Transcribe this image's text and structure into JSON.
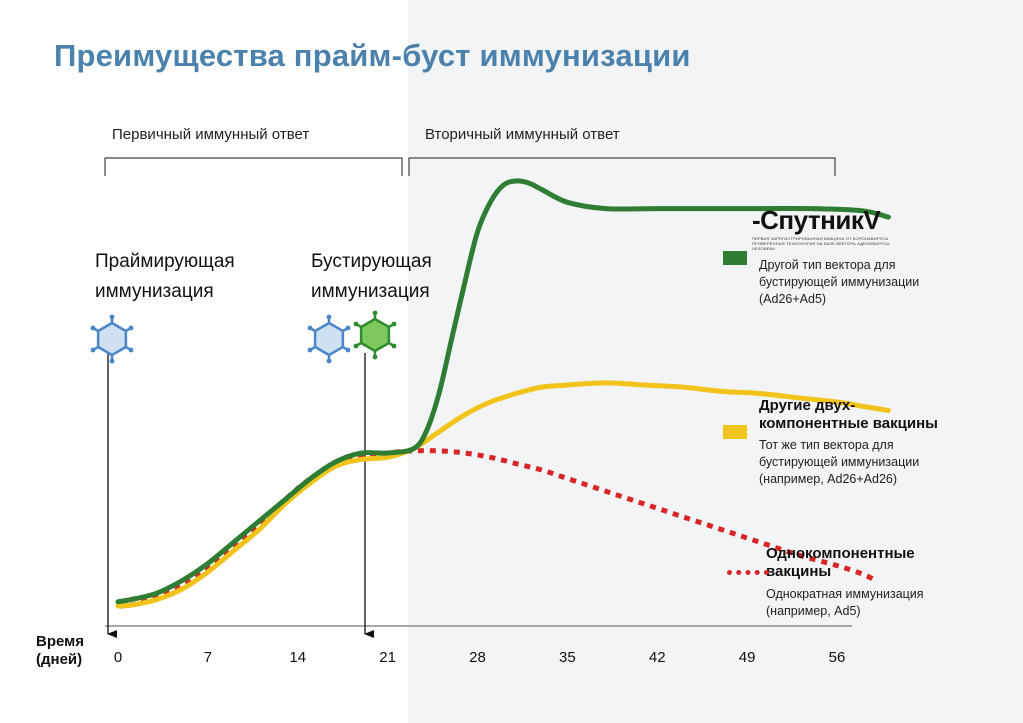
{
  "title": "Преимущества прайм-буст иммунизации",
  "phases": {
    "primary": "Первичный иммунный ответ",
    "secondary": "Вторичный иммунный ответ"
  },
  "events": {
    "prime": [
      "Праймирующая",
      "иммунизация"
    ],
    "boost": [
      "Бустирующая",
      "иммунизация"
    ]
  },
  "logo": {
    "text": "-СпутникV",
    "subtitle": [
      "ПЕРВАЯ ЗАРЕГИСТРИРОВАННАЯ ВАКЦИНА ОТ КОРОНАВИРУСА",
      "ПРОВЕРЕННАЯ ТЕХНОЛОГИЯ НА БАЗЕ ВЕКТОРА АДЕНОВИРУСА ЧЕЛОВЕКА"
    ]
  },
  "legend": {
    "sputnik": {
      "desc": [
        "Другой тип вектора для",
        "бустирующей иммунизации",
        "(Ad26+Ad5)"
      ]
    },
    "two_component": {
      "title": [
        "Другие двух-",
        "компонентные вакцины"
      ],
      "desc": [
        "Тот же тип вектора для",
        "бустирующей иммунизации",
        "(например, Ad26+Ad26)"
      ]
    },
    "single": {
      "title": [
        "Однокомпонентные",
        "вакцины"
      ],
      "desc": [
        "Однократная иммунизация",
        "(например, Ad5)"
      ]
    }
  },
  "colors": {
    "title": "#4a82ad",
    "green": "#2e7d32",
    "yellow": "#f2c31b",
    "red": "#d82626",
    "virus_blue": "#4a86c8",
    "virus_green": "#2e8b2e"
  },
  "chart_data": {
    "type": "line",
    "xlabel": [
      "Время",
      "(дней)"
    ],
    "x_ticks": [
      0,
      7,
      14,
      21,
      28,
      35,
      42,
      49,
      56
    ],
    "xlim": [
      0,
      59
    ],
    "ylim": [
      0,
      1
    ],
    "grid": false,
    "legend_position": "right",
    "events_at_day": [
      0,
      21
    ],
    "series": [
      {
        "key": "sputnik",
        "color": "#2e7d32",
        "style": "solid",
        "x": [
          0,
          1,
          3,
          5,
          7,
          9,
          11,
          13,
          15,
          17,
          19,
          21,
          23,
          24,
          25,
          26,
          27,
          28,
          29,
          30,
          31,
          32,
          33,
          35,
          38,
          42,
          46,
          50,
          54,
          58,
          60
        ],
        "y": [
          0.01,
          0.015,
          0.03,
          0.06,
          0.1,
          0.15,
          0.2,
          0.25,
          0.3,
          0.34,
          0.36,
          0.36,
          0.37,
          0.41,
          0.5,
          0.63,
          0.76,
          0.88,
          0.95,
          0.99,
          1.0,
          0.995,
          0.98,
          0.95,
          0.935,
          0.935,
          0.935,
          0.935,
          0.935,
          0.93,
          0.915
        ]
      },
      {
        "key": "two_component",
        "color": "#f2c31b",
        "style": "solid",
        "x": [
          0,
          1,
          3,
          5,
          7,
          9,
          11,
          13,
          15,
          17,
          19,
          21,
          23,
          25,
          27,
          29,
          31,
          33,
          35,
          38,
          41,
          44,
          47,
          50,
          53,
          56,
          58,
          60
        ],
        "y": [
          0.0,
          0.002,
          0.015,
          0.04,
          0.08,
          0.13,
          0.18,
          0.24,
          0.29,
          0.33,
          0.345,
          0.35,
          0.37,
          0.41,
          0.45,
          0.48,
          0.5,
          0.515,
          0.52,
          0.525,
          0.52,
          0.515,
          0.505,
          0.5,
          0.49,
          0.48,
          0.47,
          0.46
        ]
      },
      {
        "key": "single",
        "color": "#d82626",
        "style": "dotted",
        "x": [
          0,
          1,
          3,
          5,
          7,
          9,
          11,
          13,
          15,
          17,
          19,
          21,
          23,
          25,
          27,
          29,
          31,
          33,
          35,
          38,
          41,
          44,
          47,
          50,
          53,
          56,
          58,
          59
        ],
        "y": [
          0.0,
          0.002,
          0.02,
          0.05,
          0.09,
          0.14,
          0.19,
          0.25,
          0.3,
          0.335,
          0.35,
          0.36,
          0.365,
          0.365,
          0.36,
          0.35,
          0.335,
          0.32,
          0.3,
          0.27,
          0.24,
          0.21,
          0.18,
          0.15,
          0.12,
          0.095,
          0.075,
          0.06
        ]
      }
    ]
  }
}
